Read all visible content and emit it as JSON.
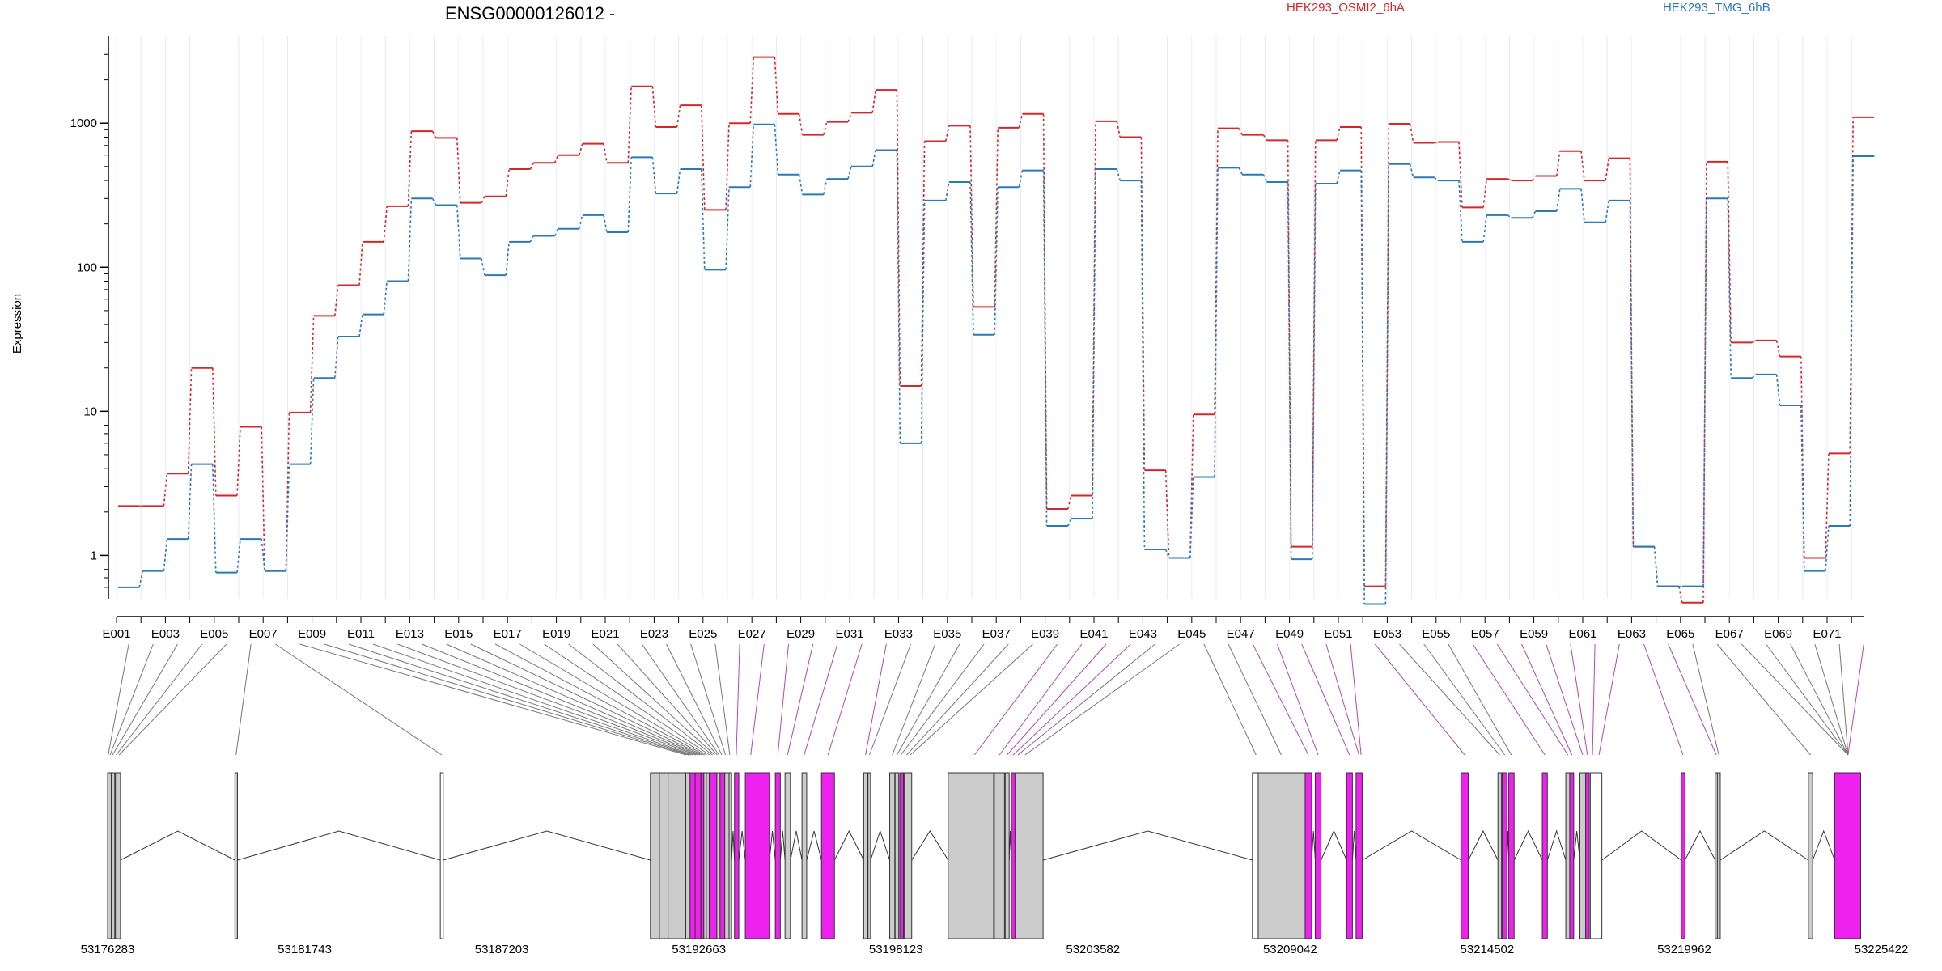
{
  "chart_data": {
    "type": "line",
    "title": "ENSG00000126012 -",
    "ylabel": "Expression",
    "yscale": "log",
    "ylim": [
      0.5,
      4000
    ],
    "yticks": [
      "1",
      "10",
      "100",
      "1000"
    ],
    "ytick_values": [
      1,
      10,
      100,
      1000
    ],
    "categories": [
      "E001",
      "E002",
      "E003",
      "E004",
      "E005",
      "E006",
      "E007",
      "E008",
      "E009",
      "E010",
      "E011",
      "E012",
      "E013",
      "E014",
      "E015",
      "E016",
      "E017",
      "E018",
      "E019",
      "E020",
      "E021",
      "E022",
      "E023",
      "E024",
      "E025",
      "E026",
      "E027",
      "E028",
      "E029",
      "E030",
      "E031",
      "E032",
      "E033",
      "E034",
      "E035",
      "E036",
      "E037",
      "E038",
      "E039",
      "E040",
      "E041",
      "E042",
      "E043",
      "E044",
      "E045",
      "E046",
      "E047",
      "E048",
      "E049",
      "E050",
      "E051",
      "E052",
      "E053",
      "E054",
      "E055",
      "E056",
      "E057",
      "E058",
      "E059",
      "E060",
      "E061",
      "E062",
      "E063",
      "E064",
      "E065",
      "E066",
      "E067",
      "E068",
      "E069",
      "E070",
      "E071",
      "E072"
    ],
    "xtick_labels": [
      "E001",
      "E003",
      "E005",
      "E007",
      "E009",
      "E011",
      "E013",
      "E015",
      "E017",
      "E019",
      "E021",
      "E023",
      "E025",
      "E027",
      "E029",
      "E031",
      "E033",
      "E035",
      "E037",
      "E039",
      "E041",
      "E043",
      "E045",
      "E047",
      "E049",
      "E051",
      "E053",
      "E055",
      "E057",
      "E059",
      "E061",
      "E063",
      "E065",
      "E067",
      "E069",
      "E071"
    ],
    "series": [
      {
        "name": "HEK293_OSMI2_6hA",
        "color": "#d62728",
        "values": [
          2.2,
          2.2,
          3.7,
          20,
          2.6,
          7.8,
          0.78,
          9.8,
          46,
          75,
          150,
          265,
          880,
          790,
          280,
          310,
          480,
          530,
          600,
          720,
          530,
          1800,
          940,
          1330,
          250,
          1000,
          2870,
          1160,
          830,
          1020,
          1180,
          1700,
          15,
          750,
          960,
          53,
          930,
          1160,
          2.1,
          2.6,
          1030,
          800,
          3.9,
          0.96,
          9.5,
          920,
          830,
          760,
          1.15,
          760,
          940,
          0.61,
          990,
          730,
          740,
          260,
          410,
          400,
          430,
          640,
          400,
          570,
          1.15,
          0.61,
          0.47,
          540,
          30,
          31,
          24,
          0.96,
          5.1,
          1100
        ]
      },
      {
        "name": "HEK293_TMG_6hB",
        "color": "#2a7ab8",
        "values": [
          0.6,
          0.78,
          1.3,
          4.3,
          0.76,
          1.3,
          0.78,
          4.3,
          17,
          33,
          47,
          80,
          300,
          270,
          115,
          88,
          150,
          165,
          185,
          230,
          175,
          580,
          325,
          480,
          96,
          360,
          980,
          440,
          320,
          410,
          500,
          650,
          6,
          290,
          390,
          34,
          360,
          470,
          1.6,
          1.8,
          480,
          400,
          1.1,
          0.96,
          3.5,
          490,
          440,
          390,
          0.94,
          380,
          470,
          0.46,
          520,
          420,
          400,
          150,
          230,
          220,
          245,
          350,
          205,
          290,
          1.15,
          0.61,
          0.61,
          300,
          17,
          18,
          11,
          0.78,
          1.6,
          590
        ]
      }
    ],
    "legend": [
      "HEK293_OSMI2_6hA",
      "HEK293_TMG_6hB"
    ],
    "legend_placement": "top",
    "grid": "vertical",
    "genomic_ticks": [
      "53176283",
      "53181743",
      "53187203",
      "53192663",
      "53198123",
      "53203582",
      "53209042",
      "53214502",
      "53219962",
      "53225422"
    ],
    "exon_track": {
      "kind": "gene model",
      "colors": {
        "default": "#cccccc",
        "highlighted": "#ee22ee"
      },
      "exons": [
        [
          53176283,
          53176383,
          "default"
        ],
        [
          53176400,
          53176480,
          "default"
        ],
        [
          53176500,
          53176640,
          "default"
        ],
        [
          53179810,
          53179880,
          "default"
        ],
        [
          53185500,
          53185580,
          "white"
        ],
        [
          53191320,
          53191570,
          "default"
        ],
        [
          53191570,
          53191810,
          "default"
        ],
        [
          53191810,
          53192300,
          "default"
        ],
        [
          53192300,
          53192420,
          "default"
        ],
        [
          53192420,
          53192560,
          "highlighted"
        ],
        [
          53192560,
          53192720,
          "highlighted"
        ],
        [
          53192720,
          53192800,
          "highlighted"
        ],
        [
          53192800,
          53192870,
          "default"
        ],
        [
          53192870,
          53192950,
          "default"
        ],
        [
          53192950,
          53193160,
          "highlighted"
        ],
        [
          53193160,
          53193250,
          "default"
        ],
        [
          53193250,
          53193380,
          "highlighted"
        ],
        [
          53193380,
          53193500,
          "default"
        ],
        [
          53193500,
          53193570,
          "default"
        ],
        [
          53193650,
          53193770,
          "highlighted"
        ],
        [
          53193950,
          53194620,
          "highlighted"
        ],
        [
          53194780,
          53194920,
          "highlighted"
        ],
        [
          53195050,
          53195200,
          "default"
        ],
        [
          53195520,
          53195650,
          "default"
        ],
        [
          53196060,
          53196420,
          "highlighted"
        ],
        [
          53197230,
          53197340,
          "default"
        ],
        [
          53197350,
          53197420,
          "default"
        ],
        [
          53197950,
          53198090,
          "default"
        ],
        [
          53198100,
          53198200,
          "default"
        ],
        [
          53198230,
          53198330,
          "highlighted"
        ],
        [
          53198350,
          53198560,
          "default"
        ],
        [
          53199570,
          53200830,
          "default"
        ],
        [
          53200850,
          53201130,
          "default"
        ],
        [
          53201150,
          53201260,
          "default"
        ],
        [
          53201320,
          53201420,
          "highlighted"
        ],
        [
          53201440,
          53202200,
          "default"
        ],
        [
          53208000,
          53208160,
          "white"
        ],
        [
          53208160,
          53209460,
          "default"
        ],
        [
          53209460,
          53209640,
          "highlighted"
        ],
        [
          53209740,
          53209900,
          "highlighted"
        ],
        [
          53210610,
          53210770,
          "highlighted"
        ],
        [
          53210870,
          53211040,
          "highlighted"
        ],
        [
          53213780,
          53213980,
          "highlighted"
        ],
        [
          53214800,
          53214900,
          "default"
        ],
        [
          53214920,
          53215050,
          "highlighted"
        ],
        [
          53215100,
          53215250,
          "highlighted"
        ],
        [
          53216030,
          53216170,
          "highlighted"
        ],
        [
          53216680,
          53216790,
          "default"
        ],
        [
          53216790,
          53216900,
          "highlighted"
        ],
        [
          53217070,
          53217230,
          "default"
        ],
        [
          53217230,
          53217330,
          "highlighted"
        ],
        [
          53217360,
          53217680,
          "white"
        ],
        [
          53219880,
          53219980,
          "highlighted"
        ],
        [
          53220820,
          53220880,
          "default"
        ],
        [
          53220880,
          53220960,
          "default"
        ],
        [
          53223400,
          53223520,
          "default"
        ],
        [
          53224130,
          53224850,
          "highlighted"
        ]
      ],
      "exon_links": [
        [
          0,
          53176300
        ],
        [
          1,
          53176350
        ],
        [
          2,
          53176420
        ],
        [
          3,
          53176520
        ],
        [
          4,
          53176600
        ],
        [
          5,
          53179840
        ],
        [
          6,
          53185540
        ],
        [
          7,
          53192310
        ],
        [
          8,
          53192380
        ],
        [
          9,
          53192440
        ],
        [
          10,
          53192500
        ],
        [
          11,
          53192580
        ],
        [
          12,
          53192640
        ],
        [
          13,
          53192700
        ],
        [
          14,
          53192760
        ],
        [
          15,
          53192820
        ],
        [
          16,
          53192880
        ],
        [
          17,
          53192960
        ],
        [
          18,
          53193040
        ],
        [
          19,
          53193100
        ],
        [
          20,
          53193170
        ],
        [
          21,
          53193220
        ],
        [
          22,
          53193300
        ],
        [
          23,
          53193400
        ],
        [
          24,
          53193520
        ],
        [
          25,
          53193700
        ],
        [
          26,
          53194100
        ],
        [
          27,
          53194850
        ],
        [
          28,
          53195120
        ],
        [
          29,
          53195580
        ],
        [
          30,
          53196240
        ],
        [
          31,
          53197280
        ],
        [
          32,
          53197390
        ],
        [
          33,
          53198020
        ],
        [
          34,
          53198150
        ],
        [
          35,
          53198260
        ],
        [
          36,
          53198420
        ],
        [
          37,
          53198520
        ],
        [
          38,
          53200300
        ],
        [
          39,
          53200990
        ],
        [
          40,
          53201200
        ],
        [
          41,
          53201370
        ],
        [
          42,
          53201500
        ],
        [
          43,
          53201700
        ],
        [
          44,
          53208100
        ],
        [
          45,
          53208800
        ],
        [
          46,
          53209550
        ],
        [
          47,
          53209820
        ],
        [
          48,
          53210690
        ],
        [
          49,
          53210950
        ],
        [
          50,
          53211010
        ],
        [
          51,
          53213880
        ],
        [
          52,
          53214850
        ],
        [
          53,
          53214990
        ],
        [
          54,
          53215170
        ],
        [
          55,
          53216100
        ],
        [
          56,
          53216740
        ],
        [
          57,
          53216850
        ],
        [
          58,
          53217150
        ],
        [
          59,
          53217280
        ],
        [
          60,
          53217420
        ],
        [
          61,
          53217600
        ],
        [
          62,
          53219930
        ],
        [
          63,
          53220850
        ],
        [
          64,
          53220920
        ],
        [
          65,
          53223460
        ],
        [
          66,
          53224500
        ],
        [
          67,
          53224500
        ],
        [
          68,
          53224500
        ],
        [
          69,
          53224500
        ],
        [
          70,
          53224500
        ],
        [
          71,
          53224500
        ]
      ]
    }
  }
}
